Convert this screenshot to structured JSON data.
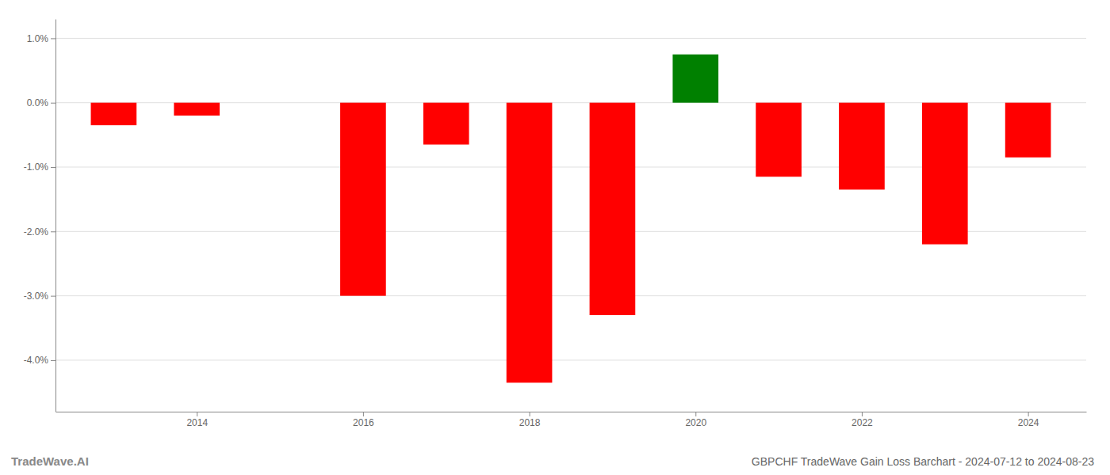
{
  "chart_data": {
    "type": "bar",
    "title": "GBPCHF TradeWave Gain Loss Barchart - 2024-07-12 to 2024-08-23",
    "annotations": [
      "TradeWave.AI"
    ],
    "x": [
      2013,
      2014,
      2015,
      2016,
      2017,
      2018,
      2019,
      2020,
      2021,
      2022,
      2023,
      2024
    ],
    "values": [
      -0.0035,
      -0.002,
      0.0,
      -0.03,
      -0.0065,
      -0.0435,
      -0.033,
      0.0075,
      -0.0115,
      -0.0135,
      -0.022,
      -0.0085
    ],
    "colors": [
      "#ff0000",
      "#ff0000",
      "#ff0000",
      "#ff0000",
      "#ff0000",
      "#ff0000",
      "#ff0000",
      "#008000",
      "#ff0000",
      "#ff0000",
      "#ff0000",
      "#ff0000"
    ],
    "xlim": [
      2012.3,
      2024.7
    ],
    "xticks": [
      2014,
      2016,
      2018,
      2020,
      2022,
      2024
    ],
    "ylim": [
      -0.048,
      0.013
    ],
    "yticks": [
      {
        "value": -0.04,
        "label": "-4.0%"
      },
      {
        "value": -0.03,
        "label": "-3.0%"
      },
      {
        "value": -0.02,
        "label": "-2.0%"
      },
      {
        "value": -0.01,
        "label": "-1.0%"
      },
      {
        "value": 0.0,
        "label": "0.0%"
      },
      {
        "value": 0.01,
        "label": "1.0%"
      }
    ],
    "grid": true
  }
}
